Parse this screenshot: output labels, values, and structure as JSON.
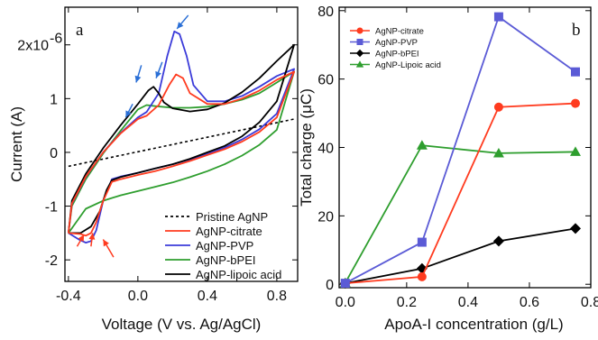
{
  "chart_data": [
    {
      "type": "line",
      "panel_label": "a",
      "xlabel": "Voltage (V vs. Ag/AgCl)",
      "ylabel": "Current (A)",
      "xlim": [
        -0.42,
        0.92
      ],
      "ylim": [
        -2.4e-06,
        2.7e-06
      ],
      "x_ticks": [
        -0.4,
        0.0,
        0.4,
        0.8
      ],
      "x_tick_labels": [
        "-0.4",
        "0.0",
        "0.4",
        "0.8"
      ],
      "y_ticks": [
        -2e-06,
        -1e-06,
        0,
        1e-06,
        2e-06
      ],
      "y_tick_labels": [
        "-2",
        "-1",
        "0",
        "1",
        "2x10"
      ],
      "y_exponent_label": "-6",
      "legend_position": "bottom-right",
      "series": [
        {
          "name": "Pristine AgNP",
          "color": "#000000",
          "dash": "dotted",
          "x": [
            -0.4,
            0.9
          ],
          "y": [
            -2.6e-07,
            6.2e-07
          ]
        },
        {
          "name": "AgNP-citrate",
          "color": "#ff3b1f",
          "dash": "solid",
          "x": [
            -0.4,
            -0.33,
            -0.3,
            -0.27,
            -0.24,
            -0.2,
            -0.15,
            -0.1,
            0.0,
            0.1,
            0.2,
            0.3,
            0.4,
            0.5,
            0.6,
            0.7,
            0.8,
            0.9,
            0.8,
            0.7,
            0.6,
            0.5,
            0.4,
            0.3,
            0.26,
            0.22,
            0.18,
            0.12,
            0.05,
            0.0,
            -0.1,
            -0.2,
            -0.3,
            -0.38,
            -0.4
          ],
          "y": [
            -1.5e-06,
            -1.52e-06,
            -1.55e-06,
            -1.5e-06,
            -1.3e-06,
            -9e-07,
            -5.5e-07,
            -5e-07,
            -4.2e-07,
            -3.5e-07,
            -2.6e-07,
            -1.6e-07,
            -5e-08,
            6e-08,
            2e-07,
            3.8e-07,
            6.5e-07,
            1.5e-06,
            1.35e-06,
            1.15e-06,
            1e-06,
            9e-07,
            9e-07,
            1.1e-06,
            1.38e-06,
            1.45e-06,
            1.25e-06,
            8.8e-07,
            6.8e-07,
            6.2e-07,
            3.5e-07,
            0.0,
            -4.5e-07,
            -9.5e-07,
            -1.5e-06
          ]
        },
        {
          "name": "AgNP-PVP",
          "color": "#3b3bd9",
          "dash": "solid",
          "x": [
            -0.4,
            -0.34,
            -0.3,
            -0.27,
            -0.24,
            -0.2,
            -0.15,
            -0.1,
            0.0,
            0.1,
            0.2,
            0.3,
            0.4,
            0.5,
            0.6,
            0.7,
            0.8,
            0.9,
            0.8,
            0.7,
            0.6,
            0.5,
            0.4,
            0.32,
            0.28,
            0.24,
            0.21,
            0.17,
            0.12,
            0.05,
            0.0,
            -0.1,
            -0.2,
            -0.3,
            -0.38,
            -0.4
          ],
          "y": [
            -1.5e-06,
            -1.62e-06,
            -1.68e-06,
            -1.65e-06,
            -1.45e-06,
            -9e-07,
            -5e-07,
            -4.5e-07,
            -3.8e-07,
            -3e-07,
            -2.2e-07,
            -1.3e-07,
            -3e-08,
            9e-08,
            2.4e-07,
            4.3e-07,
            7.2e-07,
            1.55e-06,
            1.42e-06,
            1.22e-06,
            1.05e-06,
            9.5e-07,
            9.5e-07,
            1.25e-06,
            1.8e-06,
            2.2e-06,
            2.25e-06,
            1.8e-06,
            1.1e-06,
            7.5e-07,
            6.5e-07,
            3.6e-07,
            0.0,
            -4.6e-07,
            -9.6e-07,
            -1.5e-06
          ]
        },
        {
          "name": "AgNP-bPEI",
          "color": "#2e9e2e",
          "dash": "solid",
          "x": [
            -0.4,
            -0.3,
            -0.2,
            -0.1,
            0.0,
            0.1,
            0.2,
            0.3,
            0.4,
            0.5,
            0.6,
            0.7,
            0.8,
            0.9,
            0.8,
            0.7,
            0.6,
            0.5,
            0.4,
            0.3,
            0.2,
            0.1,
            0.05,
            0.0,
            -0.1,
            -0.2,
            -0.3,
            -0.38,
            -0.4
          ],
          "y": [
            -1.5e-06,
            -1.05e-06,
            -9e-07,
            -8e-07,
            -7.2e-07,
            -6.4e-07,
            -5.6e-07,
            -4.6e-07,
            -3.5e-07,
            -2.2e-07,
            -6e-08,
            1.4e-07,
            4.2e-07,
            1.5e-06,
            1.3e-06,
            1.1e-06,
            9.8e-07,
            9e-07,
            8.5e-07,
            8.3e-07,
            8.3e-07,
            8.6e-07,
            8.8e-07,
            8e-07,
            4e-07,
            -2e-08,
            -5e-07,
            -1e-06,
            -1.5e-06
          ]
        },
        {
          "name": "AgNP-lipoic acid",
          "color": "#000000",
          "dash": "solid",
          "x": [
            -0.4,
            -0.33,
            -0.27,
            -0.22,
            -0.18,
            -0.15,
            -0.1,
            0.0,
            0.1,
            0.2,
            0.3,
            0.4,
            0.5,
            0.6,
            0.7,
            0.8,
            0.9,
            0.8,
            0.7,
            0.6,
            0.5,
            0.4,
            0.3,
            0.2,
            0.15,
            0.12,
            0.09,
            0.06,
            0.0,
            -0.1,
            -0.2,
            -0.3,
            -0.38,
            -0.4
          ],
          "y": [
            -1.5e-06,
            -1.5e-06,
            -1.38e-06,
            -1.1e-06,
            -7e-07,
            -5.2e-07,
            -4.6e-07,
            -3.8e-07,
            -3e-07,
            -2.2e-07,
            -1.2e-07,
            0.0,
            1.2e-07,
            3e-07,
            5.6e-07,
            9.5e-07,
            2e-06,
            1.7e-06,
            1.38e-06,
            1.12e-06,
            9.2e-07,
            8e-07,
            7.6e-07,
            8.2e-07,
            9.3e-07,
            1.1e-06,
            1.22e-06,
            1.15e-06,
            9e-07,
            5e-07,
            8e-08,
            -4e-07,
            -9e-07,
            -1.5e-06
          ]
        }
      ]
    },
    {
      "type": "line",
      "panel_label": "b",
      "xlabel": "ApoA-I concentration (g/L)",
      "ylabel": "Total charge  (μC)",
      "xlim": [
        -0.02,
        0.8
      ],
      "ylim": [
        -1,
        81
      ],
      "x_ticks": [
        0.0,
        0.2,
        0.4,
        0.6,
        0.8
      ],
      "x_tick_labels": [
        "0.0",
        "0.2",
        "0.4",
        "0.6",
        "0.8"
      ],
      "y_ticks": [
        0,
        20,
        40,
        60,
        80
      ],
      "y_tick_labels": [
        "0",
        "20",
        "40",
        "60",
        "80"
      ],
      "legend_position": "top-left",
      "x": [
        0.0,
        0.25,
        0.5,
        0.75
      ],
      "series": [
        {
          "name": "AgNP-citrate",
          "color": "#ff3b1f",
          "marker": "circle",
          "values": [
            0.3,
            2.2,
            51.8,
            52.9
          ]
        },
        {
          "name": "AgNP-PVP",
          "color": "#5b5bd6",
          "marker": "square",
          "values": [
            0.3,
            12.3,
            78.2,
            62.1
          ]
        },
        {
          "name": "AgNP-bPEI",
          "color": "#000000",
          "marker": "diamond",
          "values": [
            0.3,
            4.6,
            12.6,
            16.3
          ]
        },
        {
          "name": "AgNP-Lipoic acid",
          "color": "#2e9e2e",
          "marker": "triangle",
          "values": [
            0.4,
            40.6,
            38.3,
            38.7
          ]
        }
      ]
    }
  ]
}
